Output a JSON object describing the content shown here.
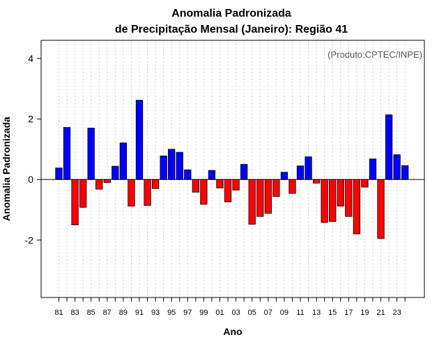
{
  "chart_data": {
    "type": "bar",
    "title_line1": "Anomalia Padronizada",
    "title_line2": "de Precipitação Mensal (Janeiro): Região 41",
    "xlabel": "Ano",
    "ylabel": "Anomalia Padronizada",
    "credit": "(Produto:CPTEC/INPE)",
    "ylim": [
      -3.9,
      4.6
    ],
    "yticks": [
      {
        "value": -2,
        "label": "-2"
      },
      {
        "value": 0,
        "label": "0"
      },
      {
        "value": 2,
        "label": "2"
      },
      {
        "value": 4,
        "label": "4"
      }
    ],
    "tick_labels": [
      "81",
      "83",
      "85",
      "87",
      "89",
      "91",
      "93",
      "95",
      "97",
      "99",
      "01",
      "03",
      "05",
      "07",
      "09",
      "11",
      "13",
      "15",
      "17",
      "19",
      "21",
      "23"
    ],
    "years": [
      1981,
      1982,
      1983,
      1984,
      1985,
      1986,
      1987,
      1988,
      1989,
      1990,
      1991,
      1992,
      1993,
      1994,
      1995,
      1996,
      1997,
      1998,
      1999,
      2000,
      2001,
      2002,
      2003,
      2004,
      2005,
      2006,
      2007,
      2008,
      2009,
      2010,
      2011,
      2012,
      2013,
      2014,
      2015,
      2016,
      2017,
      2018,
      2019,
      2020,
      2021,
      2022,
      2023,
      2024
    ],
    "values": [
      0.38,
      1.72,
      -1.5,
      -0.92,
      1.7,
      -0.32,
      -0.1,
      0.44,
      1.21,
      -0.88,
      2.62,
      -0.86,
      -0.3,
      0.78,
      1.0,
      0.9,
      0.32,
      -0.42,
      -0.82,
      0.3,
      -0.28,
      -0.74,
      -0.35,
      0.5,
      -1.48,
      -1.22,
      -1.12,
      -0.56,
      0.24,
      -0.46,
      0.45,
      0.75,
      -0.12,
      -1.42,
      -1.39,
      -0.88,
      -1.22,
      -1.8,
      -0.25,
      0.68,
      -1.95,
      2.14,
      0.82,
      0.46
    ],
    "colors": {
      "positive": "#0000ff",
      "negative": "#ff0000",
      "zero_line": "#000000",
      "grid": "#cccccc"
    },
    "grid": true
  }
}
